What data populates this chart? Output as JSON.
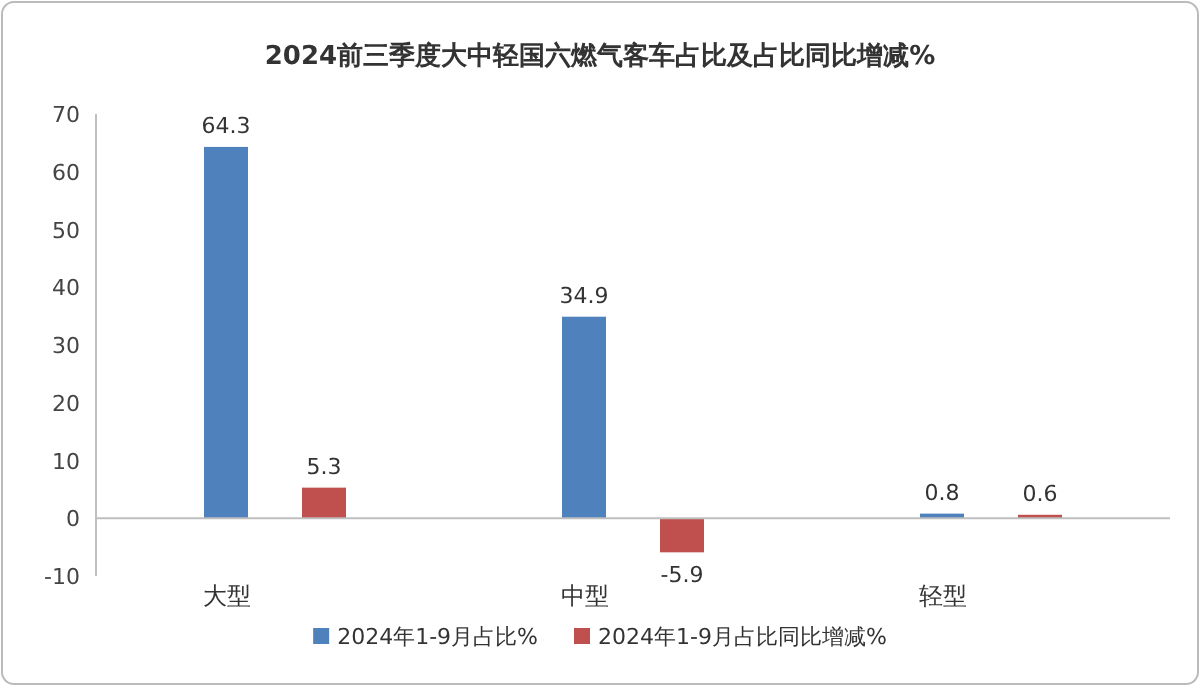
{
  "chart_data": {
    "type": "bar",
    "title": "2024前三季度大中轻国六燃气客车占比及占比同比增减%",
    "categories": [
      "大型",
      "中型",
      "轻型"
    ],
    "series": [
      {
        "name": "2024年1-9月占比%",
        "color": "#4f81bd",
        "values": [
          64.3,
          34.9,
          0.8
        ]
      },
      {
        "name": "2024年1-9月占比同比增减%",
        "color": "#c0504d",
        "values": [
          5.3,
          -5.9,
          0.6
        ]
      }
    ],
    "ylim": [
      -10,
      70
    ],
    "yticks": [
      -10,
      0,
      10,
      20,
      30,
      40,
      50,
      60,
      70
    ],
    "data_labels": true,
    "legend": "bottom"
  }
}
